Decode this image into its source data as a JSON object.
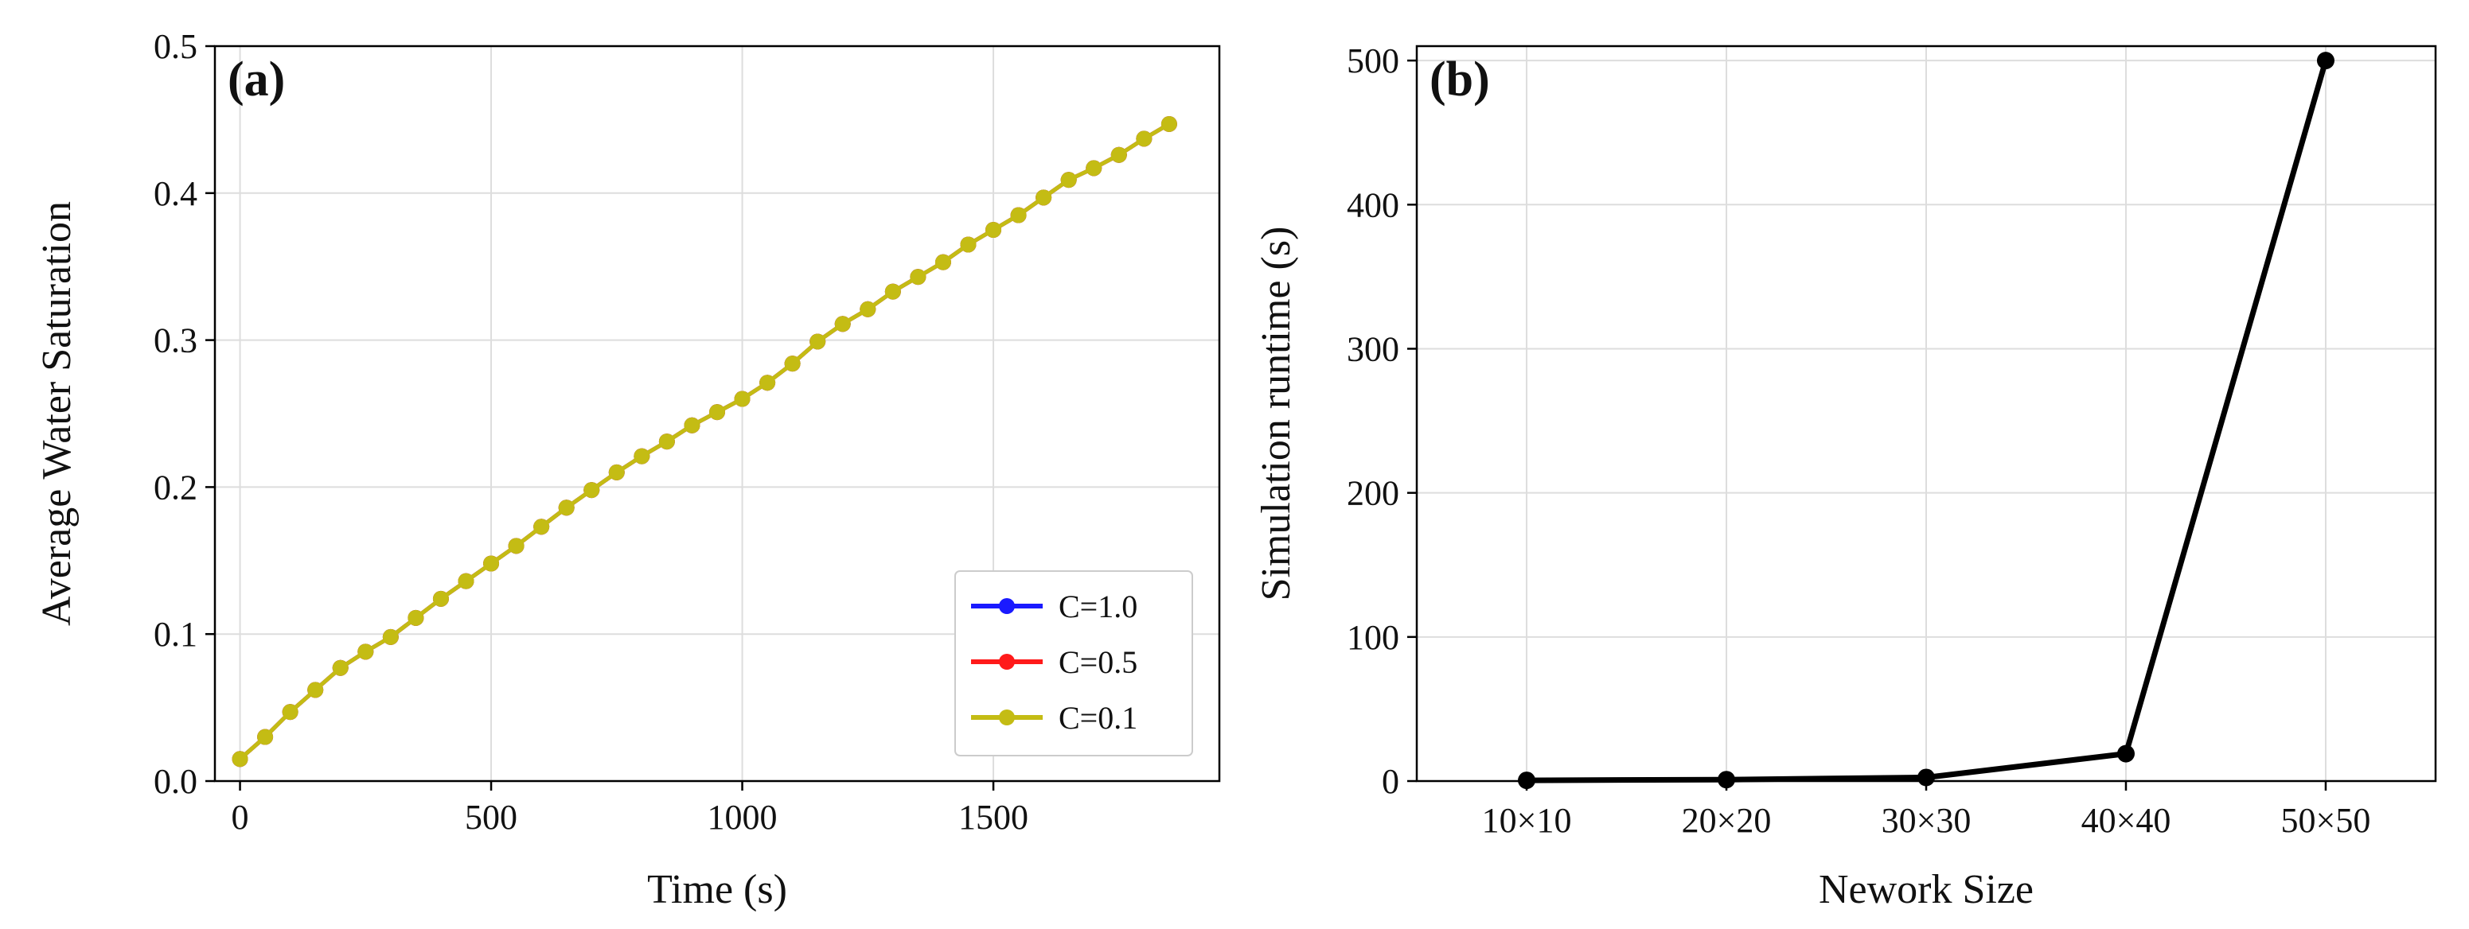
{
  "chart_data": [
    {
      "panel": "(a)",
      "type": "line",
      "title": "",
      "xlabel": "Time (s)",
      "ylabel": "Average Water Saturation",
      "xlim": [
        -50,
        1950
      ],
      "ylim": [
        0.0,
        0.5
      ],
      "xticks": [
        0,
        500,
        1000,
        1500
      ],
      "xtick_labels": [
        "0",
        "500",
        "1000",
        "1500"
      ],
      "yticks": [
        0.0,
        0.1,
        0.2,
        0.3,
        0.4,
        0.5
      ],
      "ytick_labels": [
        "0.0",
        "0.1",
        "0.2",
        "0.3",
        "0.4",
        "0.5"
      ],
      "grid": true,
      "legend_position": "lower-right",
      "x": [
        0,
        50,
        100,
        150,
        200,
        250,
        300,
        350,
        400,
        450,
        500,
        550,
        600,
        650,
        700,
        750,
        800,
        850,
        900,
        950,
        1000,
        1050,
        1100,
        1150,
        1200,
        1250,
        1300,
        1350,
        1400,
        1450,
        1500,
        1550,
        1600,
        1650,
        1700,
        1750,
        1800,
        1850
      ],
      "series": [
        {
          "name": "C=1.0",
          "color": "#1a1aff",
          "values": [
            0.015,
            0.03,
            0.047,
            0.062,
            0.077,
            0.088,
            0.098,
            0.111,
            0.124,
            0.136,
            0.148,
            0.16,
            0.173,
            0.186,
            0.198,
            0.21,
            0.221,
            0.231,
            0.242,
            0.251,
            0.26,
            0.271,
            0.284,
            0.299,
            0.311,
            0.321,
            0.333,
            0.343,
            0.353,
            0.365,
            0.375,
            0.385,
            0.397,
            0.409,
            0.417,
            0.426,
            0.437,
            0.447
          ]
        },
        {
          "name": "C=0.5",
          "color": "#ff1a1a",
          "values": [
            0.015,
            0.03,
            0.047,
            0.062,
            0.077,
            0.088,
            0.098,
            0.111,
            0.124,
            0.136,
            0.148,
            0.16,
            0.173,
            0.186,
            0.198,
            0.21,
            0.221,
            0.231,
            0.242,
            0.251,
            0.26,
            0.271,
            0.284,
            0.299,
            0.311,
            0.321,
            0.333,
            0.343,
            0.353,
            0.365,
            0.375,
            0.385,
            0.397,
            0.409,
            0.417,
            0.426,
            0.437,
            0.447
          ]
        },
        {
          "name": "C=0.1",
          "color": "#c4bc14",
          "values": [
            0.015,
            0.03,
            0.047,
            0.062,
            0.077,
            0.088,
            0.098,
            0.111,
            0.124,
            0.136,
            0.148,
            0.16,
            0.173,
            0.186,
            0.198,
            0.21,
            0.221,
            0.231,
            0.242,
            0.251,
            0.26,
            0.271,
            0.284,
            0.299,
            0.311,
            0.321,
            0.333,
            0.343,
            0.353,
            0.365,
            0.375,
            0.385,
            0.397,
            0.409,
            0.417,
            0.426,
            0.437,
            0.447
          ]
        }
      ]
    },
    {
      "panel": "(b)",
      "type": "line",
      "title": "",
      "xlabel": "Nework Size",
      "ylabel": "Simulation runtime (s)",
      "categories": [
        "10×10",
        "20×20",
        "30×30",
        "40×40",
        "50×50"
      ],
      "ylim": [
        0,
        510
      ],
      "yticks": [
        0,
        100,
        200,
        300,
        400,
        500
      ],
      "ytick_labels": [
        "0",
        "100",
        "200",
        "300",
        "400",
        "500"
      ],
      "grid": true,
      "series": [
        {
          "name": "runtime",
          "color": "#000000",
          "values": [
            0.5,
            1.0,
            2.5,
            19,
            500
          ]
        }
      ]
    }
  ]
}
